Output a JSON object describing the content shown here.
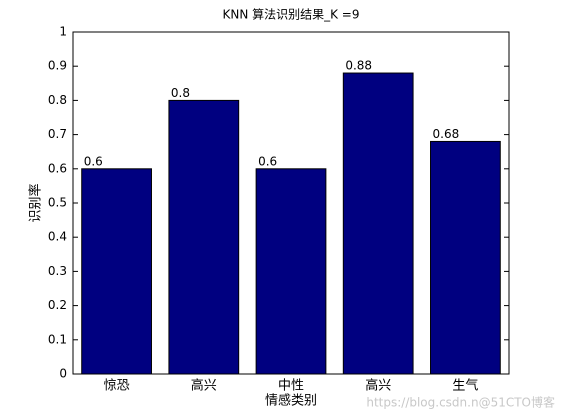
{
  "chart_data": {
    "type": "bar",
    "title": "KNN 算法识别结果_K =9",
    "x_label": "情感类别",
    "y_label": "识别率",
    "categories": [
      "惊恐",
      "高兴",
      "中性",
      "高兴",
      "生气"
    ],
    "values": [
      0.6,
      0.8,
      0.6,
      0.88,
      0.68
    ],
    "color": "#000080",
    "ylim": [
      0,
      1
    ],
    "yticks": [
      0,
      0.1,
      0.2,
      0.3,
      0.4,
      0.5,
      0.6,
      0.7,
      0.8,
      0.9,
      1
    ],
    "grid": false,
    "watermark": "https://blog.csdn.n@51CTO博客"
  }
}
